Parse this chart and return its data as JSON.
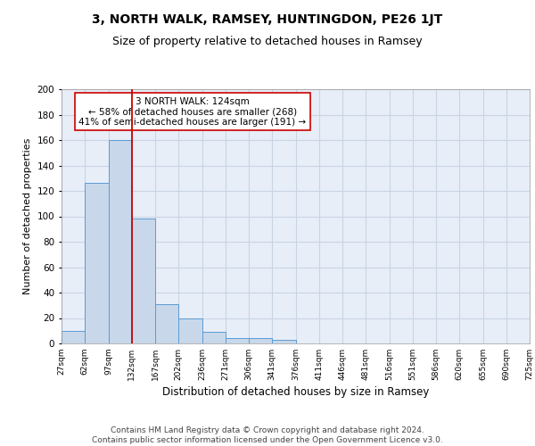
{
  "title": "3, NORTH WALK, RAMSEY, HUNTINGDON, PE26 1JT",
  "subtitle": "Size of property relative to detached houses in Ramsey",
  "xlabel": "Distribution of detached houses by size in Ramsey",
  "ylabel": "Number of detached properties",
  "bar_values": [
    10,
    126,
    160,
    98,
    31,
    20,
    9,
    4,
    4,
    3,
    0,
    0,
    0,
    0,
    0,
    0,
    0,
    0,
    0,
    0
  ],
  "bar_labels": [
    "27sqm",
    "62sqm",
    "97sqm",
    "132sqm",
    "167sqm",
    "202sqm",
    "236sqm",
    "271sqm",
    "306sqm",
    "341sqm",
    "376sqm",
    "411sqm",
    "446sqm",
    "481sqm",
    "516sqm",
    "551sqm",
    "586sqm",
    "620sqm",
    "655sqm",
    "690sqm",
    "725sqm"
  ],
  "bar_color": "#c8d8ea",
  "bar_edge_color": "#5b9bd5",
  "vline_x_bar_index": 2.5,
  "vline_color": "#cc0000",
  "annotation_text": "3 NORTH WALK: 124sqm\n← 58% of detached houses are smaller (268)\n41% of semi-detached houses are larger (191) →",
  "annotation_box_color": "#ffffff",
  "annotation_box_edge": "#cc0000",
  "ylim": [
    0,
    200
  ],
  "yticks": [
    0,
    20,
    40,
    60,
    80,
    100,
    120,
    140,
    160,
    180,
    200
  ],
  "grid_color": "#c8d4e4",
  "background_color": "#e8eef8",
  "footer_text": "Contains HM Land Registry data © Crown copyright and database right 2024.\nContains public sector information licensed under the Open Government Licence v3.0.",
  "title_fontsize": 10,
  "subtitle_fontsize": 9,
  "footer_fontsize": 6.5
}
